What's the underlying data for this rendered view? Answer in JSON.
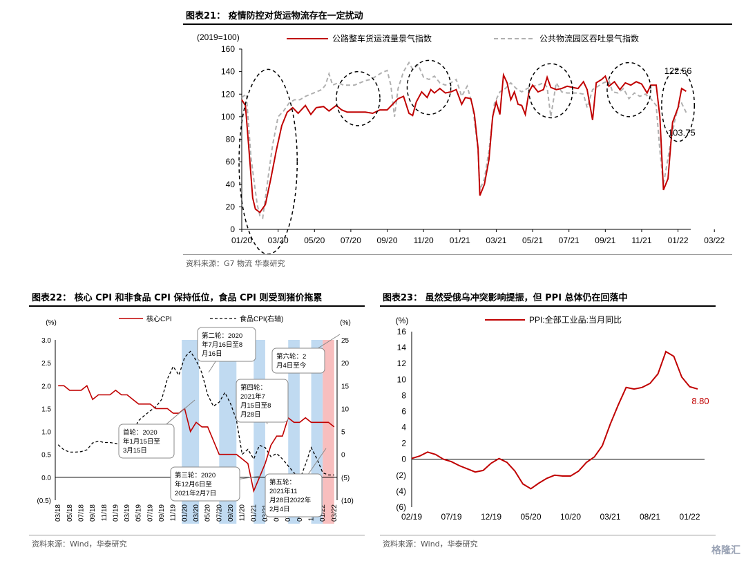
{
  "fig21": {
    "title": "图表21： 疫情防控对货运物流存在一定扰动",
    "unit": "(2019=100)",
    "source": "资料来源：G7 物流  华泰研究"
  },
  "fig22": {
    "title": "图表22： 核心 CPI 和非食品 CPI 保持低位，食品 CPI 则受到猪价拖累",
    "source": "资料来源：Wind，华泰研究"
  },
  "fig23": {
    "title": "图表23： 虽然受俄乌冲突影响提振，但 PPI 总体仍在回落中",
    "source": "资料来源：Wind，华泰研究"
  },
  "watermark": "格隆汇",
  "chart_data": [
    {
      "type": "line",
      "title": "图表21： 疫情防控对货运物流存在一定扰动",
      "ylabel": "(2019=100)",
      "ylim": [
        0,
        160
      ],
      "yticks": [
        "0",
        "20",
        "40",
        "60",
        "80",
        "100",
        "120",
        "140",
        "160"
      ],
      "xticks": [
        "01/20",
        "03/20",
        "05/20",
        "07/20",
        "09/20",
        "11/20",
        "01/21",
        "03/21",
        "05/21",
        "07/21",
        "09/21",
        "11/21",
        "01/22",
        "03/22"
      ],
      "legend_position": "top",
      "grid": false,
      "annotations": [
        "122.56",
        "103.75"
      ],
      "series": [
        {
          "name": "公路整车货运流量景气指数",
          "color": "#c00000",
          "style": "solid",
          "points": [
            [
              0,
              115
            ],
            [
              0.2,
              110
            ],
            [
              0.45,
              60
            ],
            [
              0.6,
              28
            ],
            [
              0.75,
              18
            ],
            [
              1.0,
              15
            ],
            [
              1.3,
              22
            ],
            [
              1.6,
              45
            ],
            [
              1.9,
              70
            ],
            [
              2.2,
              92
            ],
            [
              2.5,
              104
            ],
            [
              2.8,
              108
            ],
            [
              3.1,
              103
            ],
            [
              3.5,
              110
            ],
            [
              3.8,
              102
            ],
            [
              4.1,
              108
            ],
            [
              4.5,
              109
            ],
            [
              4.8,
              105
            ],
            [
              5.2,
              110
            ],
            [
              5.5,
              106
            ],
            [
              5.8,
              104
            ],
            [
              6.1,
              104
            ],
            [
              6.5,
              104
            ],
            [
              6.8,
              104
            ],
            [
              7.2,
              103
            ],
            [
              7.6,
              106
            ],
            [
              8.0,
              106
            ],
            [
              8.3,
              111
            ],
            [
              8.6,
              116
            ],
            [
              8.9,
              118
            ],
            [
              9.2,
              103
            ],
            [
              9.4,
              101
            ],
            [
              9.6,
              113
            ],
            [
              9.9,
              122
            ],
            [
              10.2,
              117
            ],
            [
              10.4,
              124
            ],
            [
              10.6,
              121
            ],
            [
              10.9,
              125
            ],
            [
              11.2,
              121
            ],
            [
              11.5,
              122
            ],
            [
              11.8,
              124
            ],
            [
              12.1,
              111
            ],
            [
              12.3,
              117
            ],
            [
              12.6,
              116
            ],
            [
              12.8,
              102
            ],
            [
              13.0,
              72
            ],
            [
              13.1,
              30
            ],
            [
              13.35,
              40
            ],
            [
              13.6,
              62
            ],
            [
              13.8,
              100
            ],
            [
              14.0,
              113
            ],
            [
              14.2,
              102
            ],
            [
              14.4,
              137
            ],
            [
              14.6,
              130
            ],
            [
              14.8,
              115
            ],
            [
              15.0,
              122
            ],
            [
              15.2,
              111
            ],
            [
              15.4,
              110
            ],
            [
              15.6,
              102
            ],
            [
              15.8,
              122
            ],
            [
              16.0,
              128
            ],
            [
              16.3,
              122
            ],
            [
              16.6,
              124
            ],
            [
              16.8,
              135
            ],
            [
              17.0,
              126
            ],
            [
              17.3,
              124
            ],
            [
              17.6,
              125
            ],
            [
              17.9,
              127
            ],
            [
              18.2,
              126
            ],
            [
              18.5,
              125
            ],
            [
              18.8,
              131
            ],
            [
              19.0,
              124
            ],
            [
              19.3,
              97
            ],
            [
              19.5,
              130
            ],
            [
              19.8,
              133
            ],
            [
              20.0,
              136
            ],
            [
              20.2,
              127
            ],
            [
              20.5,
              131
            ],
            [
              20.8,
              124
            ],
            [
              21.1,
              130
            ],
            [
              21.4,
              128
            ],
            [
              21.7,
              131
            ],
            [
              22.0,
              129
            ],
            [
              22.3,
              121
            ],
            [
              22.5,
              128
            ],
            [
              22.8,
              128
            ],
            [
              23.0,
              100
            ],
            [
              23.2,
              35
            ],
            [
              23.45,
              45
            ],
            [
              23.7,
              95
            ],
            [
              24.0,
              108
            ],
            [
              24.2,
              125
            ],
            [
              24.45,
              122.56
            ]
          ]
        },
        {
          "name": "公共物流园区吞吐景气指数",
          "color": "#b0b0b0",
          "style": "dashed",
          "points": [
            [
              0,
              117
            ],
            [
              0.25,
              120
            ],
            [
              0.5,
              65
            ],
            [
              0.7,
              40
            ],
            [
              0.85,
              22
            ],
            [
              1.0,
              12
            ],
            [
              1.15,
              10
            ],
            [
              1.4,
              40
            ],
            [
              1.7,
              75
            ],
            [
              2.0,
              100
            ],
            [
              2.3,
              105
            ],
            [
              2.6,
              112
            ],
            [
              2.9,
              115
            ],
            [
              3.2,
              115
            ],
            [
              3.5,
              118
            ],
            [
              3.8,
              120
            ],
            [
              4.1,
              122
            ],
            [
              4.4,
              124
            ],
            [
              4.6,
              128
            ],
            [
              4.8,
              138
            ],
            [
              5.0,
              128
            ],
            [
              5.3,
              130
            ],
            [
              5.6,
              128
            ],
            [
              5.9,
              128
            ],
            [
              6.2,
              128
            ],
            [
              6.5,
              130
            ],
            [
              6.8,
              132
            ],
            [
              7.1,
              133
            ],
            [
              7.4,
              136
            ],
            [
              7.7,
              139
            ],
            [
              8.0,
              141
            ],
            [
              8.2,
              128
            ],
            [
              8.4,
              100
            ],
            [
              8.6,
              125
            ],
            [
              8.9,
              140
            ],
            [
              9.2,
              148
            ],
            [
              9.4,
              142
            ],
            [
              9.7,
              146
            ],
            [
              10.0,
              135
            ],
            [
              10.3,
              133
            ],
            [
              10.6,
              136
            ],
            [
              10.9,
              130
            ],
            [
              11.2,
              128
            ],
            [
              11.5,
              130
            ],
            [
              11.8,
              133
            ],
            [
              12.1,
              118
            ],
            [
              12.4,
              127
            ],
            [
              12.7,
              110
            ],
            [
              13.0,
              70
            ],
            [
              13.1,
              35
            ],
            [
              13.35,
              45
            ],
            [
              13.6,
              70
            ],
            [
              13.9,
              112
            ],
            [
              14.2,
              122
            ],
            [
              14.5,
              125
            ],
            [
              14.8,
              130
            ],
            [
              15.1,
              125
            ],
            [
              15.4,
              122
            ],
            [
              15.7,
              125
            ],
            [
              16.0,
              127
            ],
            [
              16.3,
              128
            ],
            [
              16.6,
              130
            ],
            [
              16.8,
              126
            ],
            [
              17.0,
              100
            ],
            [
              17.3,
              130
            ],
            [
              17.6,
              122
            ],
            [
              17.9,
              121
            ],
            [
              18.2,
              121
            ],
            [
              18.5,
              121
            ],
            [
              18.8,
              120
            ],
            [
              19.0,
              108
            ],
            [
              19.3,
              124
            ],
            [
              19.6,
              127
            ],
            [
              19.9,
              130
            ],
            [
              20.2,
              132
            ],
            [
              20.4,
              122
            ],
            [
              20.7,
              121
            ],
            [
              21.0,
              125
            ],
            [
              21.3,
              116
            ],
            [
              21.6,
              121
            ],
            [
              21.9,
              118
            ],
            [
              22.2,
              120
            ],
            [
              22.5,
              116
            ],
            [
              22.8,
              110
            ],
            [
              23.0,
              70
            ],
            [
              23.2,
              40
            ],
            [
              23.5,
              68
            ],
            [
              23.8,
              95
            ],
            [
              24.0,
              108
            ],
            [
              24.2,
              112
            ],
            [
              24.45,
              103.75
            ]
          ]
        }
      ]
    },
    {
      "type": "line",
      "title": "图表22： 核心 CPI 和非食品 CPI 保持低位，食品 CPI 则受到猪价拖累",
      "ylabel": "(%)",
      "y2label": "(%)",
      "ylim": [
        -0.5,
        3.0
      ],
      "y2lim": [
        -10,
        25
      ],
      "yticks": [
        "3.0",
        "2.5",
        "2.0",
        "1.5",
        "1.0",
        "0.5",
        "0.0",
        "(0.5)"
      ],
      "y2ticks": [
        "25",
        "20",
        "15",
        "10",
        "5",
        "0",
        "(5)",
        "(10)"
      ],
      "xticks": [
        "03/18",
        "05/18",
        "07/18",
        "09/18",
        "11/18",
        "01/19",
        "03/19",
        "05/19",
        "07/19",
        "09/19",
        "11/19",
        "01/20",
        "03/20",
        "05/20",
        "07/20",
        "09/20",
        "11/20",
        "01/21",
        "03/21",
        "05/21",
        "07/21",
        "09/21",
        "11/21",
        "01/22",
        "03/22"
      ],
      "legend_position": "top",
      "bands": [
        {
          "from": 22.0,
          "to": 25.0,
          "color": "blue"
        },
        {
          "from": 28.5,
          "to": 31.5,
          "color": "blue"
        },
        {
          "from": 34.5,
          "to": 36.5,
          "color": "blue"
        },
        {
          "from": 40.5,
          "to": 42.5,
          "color": "blue"
        },
        {
          "from": 44.5,
          "to": 46.5,
          "color": "blue"
        },
        {
          "from": 46.5,
          "to": 48.5,
          "color": "red"
        }
      ],
      "callouts": [
        "首轮：2020年1月15日至3月15日",
        "第二轮：2020年7月16日至8月16日",
        "第三轮：2020年12月6日至2021年2月7日",
        "第四轮：2021年7月15日至8月28日",
        "第五轮：2021年11月28日至2022年2月4日",
        "第六轮：2月4日至今"
      ],
      "series": [
        {
          "name": "核心CPI",
          "color": "#c00000",
          "style": "solid",
          "axis": "left",
          "values": [
            2.0,
            2.0,
            1.9,
            1.9,
            1.9,
            2.0,
            1.7,
            1.8,
            1.8,
            1.8,
            1.9,
            1.8,
            1.8,
            1.7,
            1.6,
            1.6,
            1.6,
            1.5,
            1.5,
            1.5,
            1.4,
            1.4,
            1.5,
            1.0,
            1.2,
            1.1,
            1.1,
            0.8,
            0.5,
            0.5,
            0.5,
            0.5,
            0.4,
            0.3,
            -0.3,
            0.0,
            0.3,
            0.7,
            0.9,
            0.9,
            1.3,
            1.2,
            1.2,
            1.3,
            1.2,
            1.2,
            1.2,
            1.2,
            1.1
          ]
        },
        {
          "name": "食品CPI(右轴)",
          "color": "#000000",
          "style": "dashed",
          "axis": "right",
          "values": [
            2.1,
            1.0,
            0.5,
            0.5,
            0.6,
            1.0,
            2.5,
            2.9,
            2.6,
            2.6,
            2.4,
            2.0,
            2.5,
            5.0,
            7.4,
            8.5,
            9.5,
            10.4,
            12.0,
            16.5,
            19.2,
            17.3,
            21.2,
            22.5,
            20.5,
            17.8,
            13.0,
            10.5,
            11.4,
            13.5,
            11.0,
            7.5,
            0.0,
            1.1,
            -1.0,
            2.0,
            1.5,
            -0.5,
            0.2,
            -1.0,
            -2.5,
            -4.0,
            -5.5,
            -2.2,
            1.5,
            -1.0,
            -4.0,
            -4.5,
            -4.5
          ]
        }
      ]
    },
    {
      "type": "line",
      "title": "图表23： 虽然受俄乌冲突影响提振，但 PPI 总体仍在回落中",
      "ylabel": "(%)",
      "ylim": [
        -6,
        16
      ],
      "yticks": [
        "16",
        "14",
        "12",
        "10",
        "8",
        "6",
        "4",
        "2",
        "0",
        "(2)",
        "(4)",
        "(6)"
      ],
      "xticks": [
        "02/19",
        "07/19",
        "12/19",
        "05/20",
        "10/20",
        "03/21",
        "08/21",
        "01/22"
      ],
      "legend_position": "top",
      "annotations": [
        "8.80"
      ],
      "series": [
        {
          "name": "PPI:全部工业品:当月同比",
          "color": "#c00000",
          "style": "solid",
          "values": [
            0.1,
            0.4,
            0.9,
            0.6,
            0.0,
            -0.3,
            -0.8,
            -1.2,
            -1.6,
            -1.4,
            -0.5,
            0.1,
            -0.4,
            -1.5,
            -3.1,
            -3.7,
            -3.0,
            -2.4,
            -2.0,
            -2.1,
            -2.1,
            -1.5,
            -0.4,
            0.3,
            1.7,
            4.4,
            6.8,
            9.0,
            8.8,
            9.0,
            9.5,
            10.7,
            13.5,
            12.9,
            10.3,
            9.1,
            8.8
          ]
        }
      ]
    }
  ]
}
